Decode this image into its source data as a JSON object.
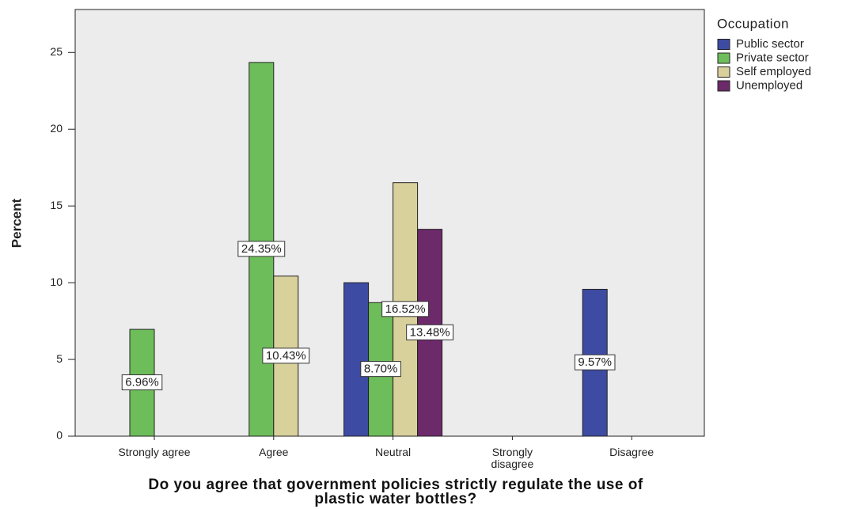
{
  "chart_data": {
    "type": "bar",
    "y_label": "Percent",
    "x_label": "Do you agree that government policies strictly regulate the use of plastic water bottles?",
    "legend_title": "Occupation",
    "categories": [
      "Strongly agree",
      "Agree",
      "Neutral",
      "Strongly disagree",
      "Disagree"
    ],
    "series": [
      {
        "name": "Public sector",
        "color": "#3d4ba3",
        "values": [
          null,
          null,
          10.0,
          null,
          9.57
        ],
        "value_labels": [
          null,
          null,
          null,
          null,
          "9.57%"
        ]
      },
      {
        "name": "Private sector",
        "color": "#6dbd5b",
        "values": [
          6.96,
          24.35,
          8.7,
          null,
          null
        ],
        "value_labels": [
          "6.96%",
          "24.35%",
          "8.70%",
          null,
          null
        ]
      },
      {
        "name": "Self employed",
        "color": "#d9d19c",
        "values": [
          null,
          10.43,
          16.52,
          null,
          null
        ],
        "value_labels": [
          null,
          "10.43%",
          "16.52%",
          null,
          null
        ]
      },
      {
        "name": "Unemployed",
        "color": "#6c2a6a",
        "values": [
          null,
          null,
          13.48,
          null,
          null
        ],
        "value_labels": [
          null,
          null,
          "13.48%",
          null,
          null
        ]
      }
    ],
    "ylim": [
      0,
      27.8
    ],
    "yticks": [
      0,
      5,
      10,
      15,
      20,
      25
    ],
    "grid": false,
    "legend": "right"
  }
}
